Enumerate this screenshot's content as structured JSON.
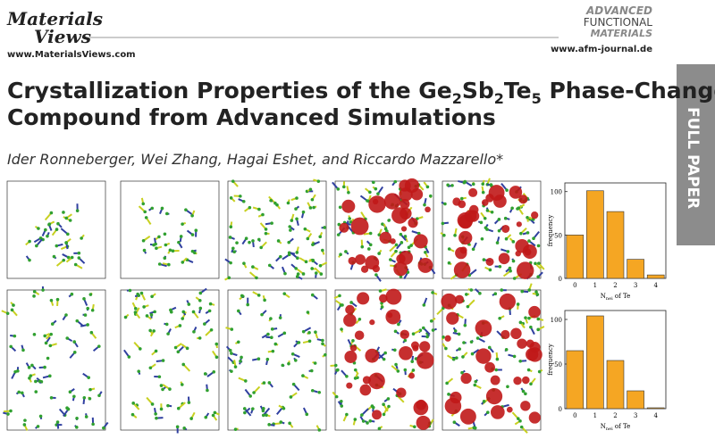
{
  "header": {
    "left_logo_top": "Materials",
    "left_logo_bottom": "Views",
    "left_url": "www.MaterialsViews.com",
    "right_logo": [
      "ADVANCED",
      "FUNCTIONAL",
      "MATERIALS"
    ],
    "right_url": "www.afm-journal.de"
  },
  "side_tab": "FULL PAPER",
  "title": [
    "Crystallization Properties of the Ge",
    "2",
    "Sb",
    "2",
    "Te",
    "5",
    " Phase-Change",
    "Compound from Advanced Simulations"
  ],
  "authors": "Ider Ronneberger, Wei Zhang, Hagai Eshet, and Riccardo Mazzarello*",
  "charts": [
    {
      "type": "bar",
      "color": "#f5a623",
      "categories": [
        "0",
        "1",
        "2",
        "3",
        "4"
      ],
      "values": [
        50,
        101,
        77,
        22,
        4
      ],
      "ylabel": "frequency",
      "xlabel": [
        "N",
        "nei",
        " of Te"
      ],
      "ylim": [
        0,
        110
      ],
      "yticks": [
        0,
        50,
        100
      ]
    },
    {
      "type": "bar",
      "color": "#f5a623",
      "categories": [
        "0",
        "1",
        "2",
        "3",
        "4"
      ],
      "values": [
        65,
        104,
        54,
        20,
        1
      ],
      "ylabel": "frequency",
      "xlabel": [
        "N",
        "nei",
        " of Te"
      ],
      "ylim": [
        0,
        110
      ],
      "yticks": [
        0,
        50,
        100
      ]
    }
  ]
}
